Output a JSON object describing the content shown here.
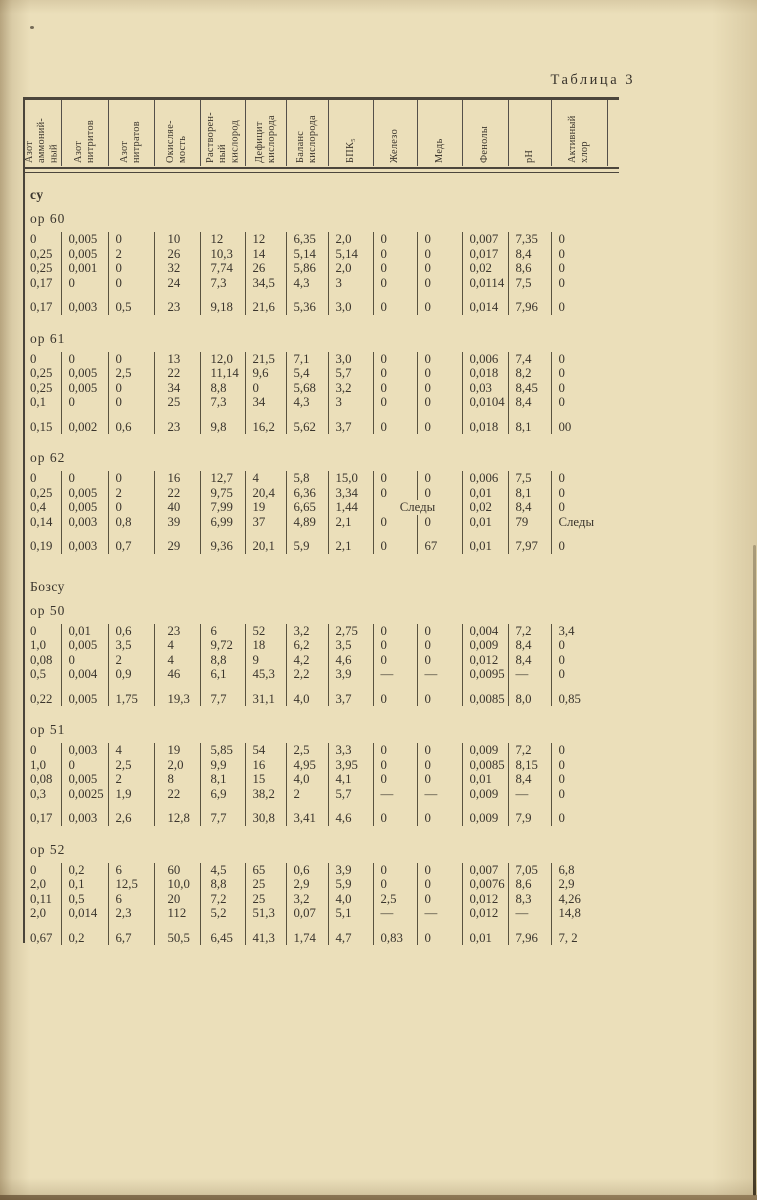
{
  "page": {
    "title": "Таблица 3"
  },
  "colors": {
    "paper": "#ebdfba",
    "ink": "#3a352d",
    "rule": "#4f4940"
  },
  "table": {
    "columns": [
      "Азот\nаммоний-\nный",
      "Азот\nнитритов",
      "Азот\nнитратов",
      "Окисляе-\nмость",
      "Растворен-\nный\nкислород",
      "Дефицит\nкислорода",
      "Баланс\nкислорода",
      "БПК₅",
      "Железо",
      "Медь",
      "Фенолы",
      "pH",
      "Активный\nхлор"
    ],
    "sections": [
      {
        "label": "су",
        "emphasis": true,
        "groups": [
          {
            "label": "ор 60",
            "rows": [
              [
                "0",
                "0,005",
                "0",
                "10",
                "12",
                "12",
                "6,35",
                "2,0",
                "0",
                "0",
                "0,007",
                "7,35",
                "0"
              ],
              [
                "0,25",
                "0,005",
                "2",
                "26",
                "10,3",
                "14",
                "5,14",
                "5,14",
                "0",
                "0",
                "0,017",
                "8,4",
                "0"
              ],
              [
                "0,25",
                "0,001",
                "0",
                "32",
                "7,74",
                "26",
                "5,86",
                "2,0",
                "0",
                "0",
                "0,02",
                "8,6",
                "0"
              ],
              [
                "0,17",
                "0",
                "0",
                "24",
                "7,3",
                "34,5",
                "4,3",
                "3",
                "0",
                "0",
                "0,0114",
                "7,5",
                "0"
              ]
            ],
            "summary": [
              "0,17",
              "0,003",
              "0,5",
              "23",
              "9,18",
              "21,6",
              "5,36",
              "3,0",
              "0",
              "0",
              "0,014",
              "7,96",
              "0"
            ]
          },
          {
            "label": "ор 61",
            "rows": [
              [
                "0",
                "0",
                "0",
                "13",
                "12,0",
                "21,5",
                "7,1",
                "3,0",
                "0",
                "0",
                "0,006",
                "7,4",
                "0"
              ],
              [
                "0,25",
                "0,005",
                "2,5",
                "22",
                "11,14",
                "9,6",
                "5,4",
                "5,7",
                "0",
                "0",
                "0,018",
                "8,2",
                "0"
              ],
              [
                "0,25",
                "0,005",
                "0",
                "34",
                "8,8",
                "0",
                "5,68",
                "3,2",
                "0",
                "0",
                "0,03",
                "8,45",
                "0"
              ],
              [
                "0,1",
                "0",
                "0",
                "25",
                "7,3",
                "34",
                "4,3",
                "3",
                "0",
                "0",
                "0,0104",
                "8,4",
                "0"
              ]
            ],
            "summary": [
              "0,15",
              "0,002",
              "0,6",
              "23",
              "9,8",
              "16,2",
              "5,62",
              "3,7",
              "0",
              "0",
              "0,018",
              "8,1",
              "00"
            ]
          },
          {
            "label": "ор 62",
            "rows": [
              [
                "0",
                "0",
                "0",
                "16",
                "12,7",
                "4",
                "5,8",
                "15,0",
                "0",
                "0",
                "0,006",
                "7,5",
                "0"
              ],
              [
                "0,25",
                "0,005",
                "2",
                "22",
                "9,75",
                "20,4",
                "6,36",
                "3,34",
                "0",
                "0",
                "0,01",
                "8,1",
                "0"
              ],
              [
                "0,4",
                "0,005",
                "0",
                "40",
                "7,99",
                "19",
                "6,65",
                "1,44",
                {
                  "text": "Следы",
                  "span": 2
                },
                "0,02",
                "8,4",
                "0"
              ],
              [
                "0,14",
                "0,003",
                "0,8",
                "39",
                "6,99",
                "37",
                "4,89",
                "2,1",
                "0",
                "0",
                "0,01",
                "79",
                "Следы"
              ]
            ],
            "summary": [
              "0,19",
              "0,003",
              "0,7",
              "29",
              "9,36",
              "20,1",
              "5,9",
              "2,1",
              "0",
              "67",
              "0,01",
              "7,97",
              "0"
            ]
          }
        ]
      },
      {
        "label": "Бозсу",
        "emphasis": false,
        "groups": [
          {
            "label": "ор 50",
            "rows": [
              [
                "0",
                "0,01",
                "0,6",
                "23",
                "6",
                "52",
                "3,2",
                "2,75",
                "0",
                "0",
                "0,004",
                "7,2",
                "3,4"
              ],
              [
                "1,0",
                "0,005",
                "3,5",
                "4",
                "9,72",
                "18",
                "6,2",
                "3,5",
                "0",
                "0",
                "0,009",
                "8,4",
                "0"
              ],
              [
                "0,08",
                "0",
                "2",
                "4",
                "8,8",
                "9",
                "4,2",
                "4,6",
                "0",
                "0",
                "0,012",
                "8,4",
                "0"
              ],
              [
                "0,5",
                "0,004",
                "0,9",
                "46",
                "6,1",
                "45,3",
                "2,2",
                "3,9",
                "—",
                "—",
                "0,0095",
                "—",
                "0"
              ]
            ],
            "summary": [
              "0,22",
              "0,005",
              "1,75",
              "19,3",
              "7,7",
              "31,1",
              "4,0",
              "3,7",
              "0",
              "0",
              "0,0085",
              "8,0",
              "0,85"
            ]
          },
          {
            "label": "ор 51",
            "rows": [
              [
                "0",
                "0,003",
                "4",
                "19",
                "5,85",
                "54",
                "2,5",
                "3,3",
                "0",
                "0",
                "0,009",
                "7,2",
                "0"
              ],
              [
                "1,0",
                "0",
                "2,5",
                "2,0",
                "9,9",
                "16",
                "4,95",
                "3,95",
                "0",
                "0",
                "0,0085",
                "8,15",
                "0"
              ],
              [
                "0,08",
                "0,005",
                "2",
                "8",
                "8,1",
                "15",
                "4,0",
                "4,1",
                "0",
                "0",
                "0,01",
                "8,4",
                "0"
              ],
              [
                "0,3",
                "0,0025",
                "1,9",
                "22",
                "6,9",
                "38,2",
                "2",
                "5,7",
                "—",
                "—",
                "0,009",
                "—",
                "0"
              ]
            ],
            "summary": [
              "0,17",
              "0,003",
              "2,6",
              "12,8",
              "7,7",
              "30,8",
              "3,41",
              "4,6",
              "0",
              "0",
              "0,009",
              "7,9",
              "0"
            ]
          },
          {
            "label": "ор 52",
            "rows": [
              [
                "0",
                "0,2",
                "6",
                "60",
                "4,5",
                "65",
                "0,6",
                "3,9",
                "0",
                "0",
                "0,007",
                "7,05",
                "6,8"
              ],
              [
                "2,0",
                "0,1",
                "12,5",
                "10,0",
                "8,8",
                "25",
                "2,9",
                "5,9",
                "0",
                "0",
                "0,0076",
                "8,6",
                "2,9"
              ],
              [
                "0,11",
                "0,5",
                "6",
                "20",
                "7,2",
                "25",
                "3,2",
                "4,0",
                "2,5",
                "0",
                "0,012",
                "8,3",
                "4,26"
              ],
              [
                "2,0",
                "0,014",
                "2,3",
                "112",
                "5,2",
                "51,3",
                "0,07",
                "5,1",
                "—",
                "—",
                "0,012",
                "—",
                "14,8"
              ]
            ],
            "summary": [
              "0,67",
              "0,2",
              "6,7",
              "50,5",
              "6,45",
              "41,3",
              "1,74",
              "4,7",
              "0,83",
              "0",
              "0,01",
              "7,96",
              "7, 2"
            ]
          }
        ]
      }
    ]
  }
}
